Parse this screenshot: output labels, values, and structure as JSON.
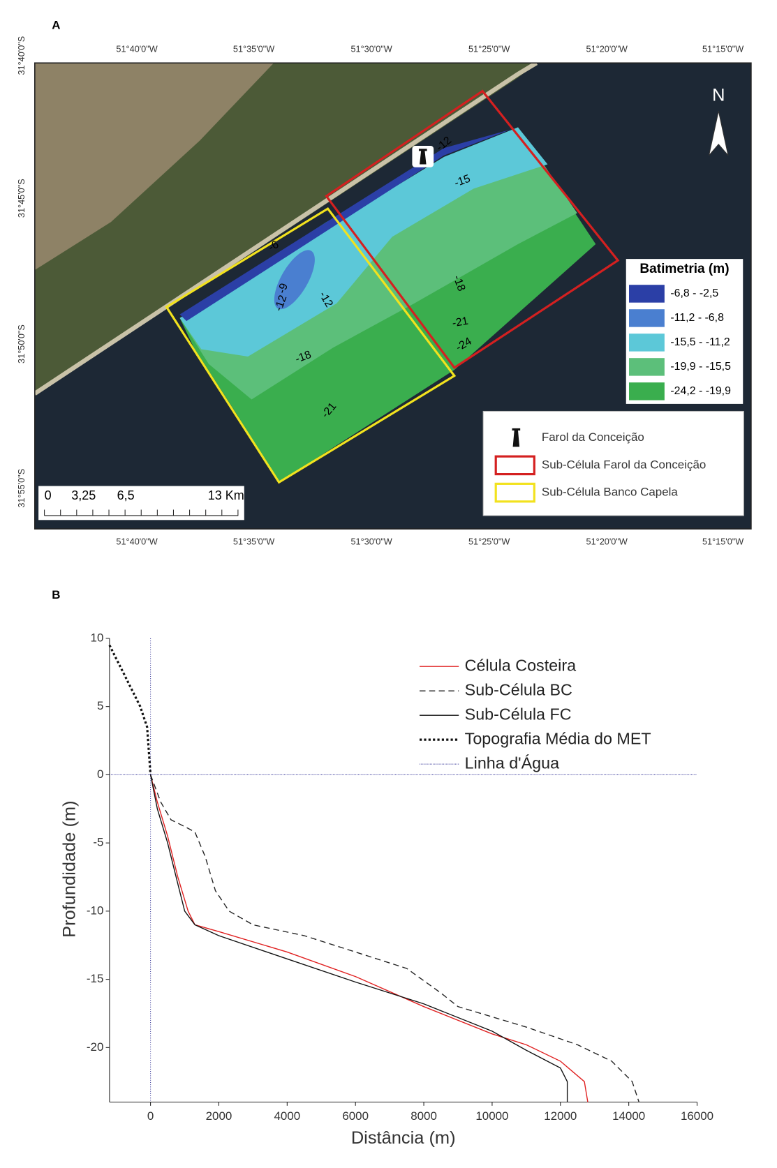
{
  "map": {
    "panel_label": "A",
    "lon_labels_top": [
      "51°40'0\"W",
      "51°35'0\"W",
      "51°30'0\"W",
      "51°25'0\"W",
      "51°20'0\"W",
      "51°15'0\"W"
    ],
    "lon_labels_bottom": [
      "51°40'0\"W",
      "51°35'0\"W",
      "51°30'0\"W",
      "51°25'0\"W",
      "51°20'0\"W",
      "51°15'0\"W"
    ],
    "lat_labels": [
      "31°40'0\"S",
      "31°45'0\"S",
      "31°50'0\"S",
      "31°55'0\"S"
    ],
    "north": "N",
    "bathymetry": {
      "title": "Batimetria (m)",
      "classes": [
        {
          "label": "-6,8 - -2,5",
          "color": "#2b3fa6"
        },
        {
          "label": "-11,2 - -6,8",
          "color": "#4a7fd0"
        },
        {
          "label": "-15,5 - -11,2",
          "color": "#5cc8d8"
        },
        {
          "label": "-19,9 - -15,5",
          "color": "#5cbf7a"
        },
        {
          "label": "-24,2 - -19,9",
          "color": "#3aae4e"
        }
      ]
    },
    "contour_labels": [
      "-12",
      "-15",
      "-6",
      "-12",
      "-9",
      "-12",
      "-18",
      "-21",
      "-24",
      "-18",
      "-21"
    ],
    "legend": [
      {
        "label": "Farol da Conceição"
      },
      {
        "label": "Sub-Célula Farol da Conceição",
        "color": "#d42020"
      },
      {
        "label": "Sub-Célula Banco Capela",
        "color": "#f2e21e"
      }
    ],
    "scale_labels": [
      "0",
      "3,25",
      "6,5",
      "13 Km"
    ]
  },
  "panel_b_label": "B",
  "chart_data": {
    "type": "line",
    "x_label": "Distância (m)",
    "y_label": "Profundidade (m)",
    "xlim": [
      -1200,
      16000
    ],
    "ylim": [
      -24,
      10
    ],
    "xticks": [
      0,
      2000,
      4000,
      6000,
      8000,
      10000,
      12000,
      14000,
      16000
    ],
    "yticks": [
      10,
      5,
      0,
      -5,
      -10,
      -15,
      -20
    ],
    "grid": false,
    "legend": "upper right",
    "series": [
      {
        "name": "Célula Costeira",
        "color": "#e02020",
        "style": "solid",
        "width": 1.3,
        "x": [
          0,
          200,
          500,
          800,
          1100,
          1300,
          2000,
          4000,
          6000,
          8000,
          10000,
          11000,
          12000,
          12700,
          12800
        ],
        "values": [
          0,
          -2,
          -4.5,
          -7.5,
          -10,
          -11,
          -11.5,
          -13,
          -14.8,
          -17,
          -19,
          -19.8,
          -21,
          -22.5,
          -24
        ]
      },
      {
        "name": "Sub-Célula BC",
        "color": "#222222",
        "style": "dashed",
        "width": 1.3,
        "x": [
          0,
          300,
          600,
          1000,
          1300,
          1600,
          1900,
          2300,
          3000,
          4500,
          6000,
          7500,
          8500,
          9000,
          11000,
          12500,
          13500,
          14100,
          14300
        ],
        "values": [
          0,
          -2,
          -3.3,
          -3.8,
          -4.2,
          -6,
          -8.5,
          -10,
          -11,
          -11.8,
          -13,
          -14.2,
          -16,
          -17,
          -18.5,
          -19.8,
          -21,
          -22.5,
          -24
        ]
      },
      {
        "name": "Sub-Célula FC",
        "color": "#111111",
        "style": "solid",
        "width": 1.3,
        "x": [
          0,
          200,
          500,
          800,
          1000,
          1300,
          2000,
          4000,
          6000,
          8000,
          10000,
          11000,
          12000,
          12200,
          12200
        ],
        "values": [
          0,
          -2.5,
          -5,
          -8,
          -10,
          -11,
          -11.8,
          -13.5,
          -15.2,
          -16.8,
          -18.8,
          -20.2,
          -21.5,
          -22.5,
          -24
        ]
      },
      {
        "name": "Topografia Média do MET",
        "color": "#111111",
        "style": "dotted",
        "width": 3,
        "x": [
          -1200,
          -1000,
          -800,
          -600,
          -300,
          -100,
          0
        ],
        "values": [
          9.5,
          8.5,
          7.5,
          6.5,
          5,
          3.5,
          0
        ]
      },
      {
        "name": "Linha d'Água",
        "color": "#3a3a9a",
        "style": "dotted",
        "width": 1,
        "x": [
          -1200,
          16000
        ],
        "values": [
          0,
          0
        ]
      }
    ]
  }
}
